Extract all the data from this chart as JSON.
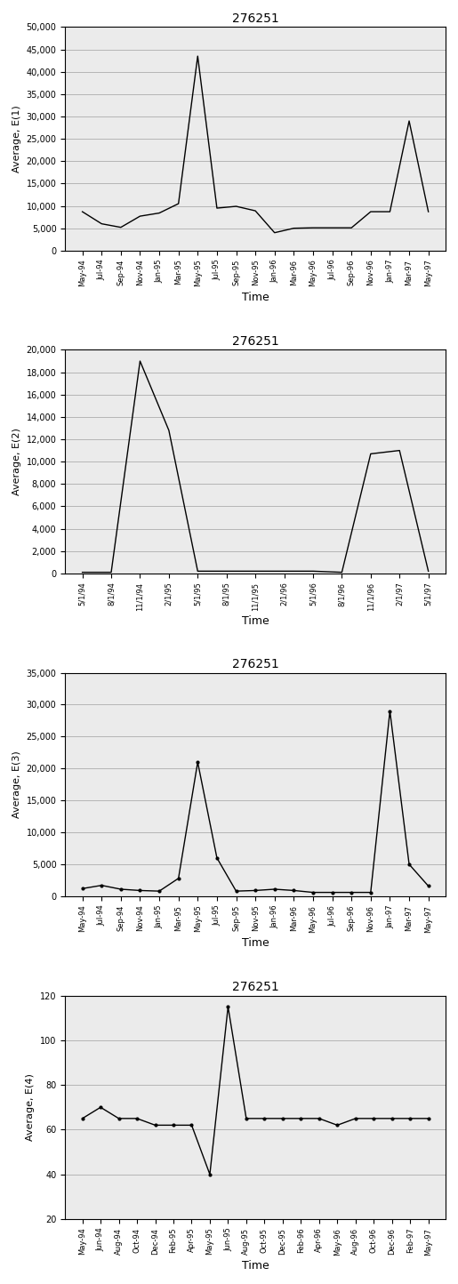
{
  "title": "276251",
  "xlabel": "Time",
  "charts": [
    {
      "ylabel": "Average, E(1)",
      "x_labels": [
        "May-94",
        "Jul-94",
        "Sep-94",
        "Nov-94",
        "Jan-95",
        "Mar-95",
        "May-95",
        "Jul-95",
        "Sep-95",
        "Nov-95",
        "Jan-96",
        "Mar-96",
        "May-96",
        "Jul-96",
        "Sep-96",
        "Nov-96",
        "Jan-97",
        "Mar-97",
        "May-97"
      ],
      "y_values": [
        8700,
        6000,
        5200,
        7700,
        8400,
        10500,
        43500,
        9500,
        9900,
        8900,
        4000,
        5000,
        5100,
        5100,
        5100,
        8700,
        8700,
        29000,
        8700
      ],
      "ylim": [
        0,
        50000
      ],
      "yticks": [
        0,
        5000,
        10000,
        15000,
        20000,
        25000,
        30000,
        35000,
        40000,
        45000,
        50000
      ]
    },
    {
      "ylabel": "Average, E(2)",
      "x_labels": [
        "5/1/94",
        "8/1/94",
        "11/1/94",
        "2/1/95",
        "5/1/95",
        "8/1/95",
        "11/1/95",
        "2/1/96",
        "5/1/96",
        "8/1/96",
        "11/1/96",
        "2/1/97",
        "5/1/97"
      ],
      "y_values": [
        100,
        100,
        19000,
        12800,
        200,
        200,
        200,
        200,
        200,
        100,
        10700,
        11000,
        200
      ],
      "ylim": [
        0,
        20000
      ],
      "yticks": [
        0,
        2000,
        4000,
        6000,
        8000,
        10000,
        12000,
        14000,
        16000,
        18000,
        20000
      ]
    },
    {
      "ylabel": "Average, E(3)",
      "x_labels": [
        "May-94",
        "Jul-94",
        "Sep-94",
        "Nov-94",
        "Jan-95",
        "Mar-95",
        "May-95",
        "Jul-95",
        "Sep-95",
        "Nov-95",
        "Jan-96",
        "Mar-96",
        "May-96",
        "Jul-96",
        "Sep-96",
        "Nov-96",
        "Jan-97",
        "Mar-97",
        "May-97"
      ],
      "y_values": [
        1200,
        1700,
        1100,
        900,
        800,
        2800,
        21000,
        6000,
        800,
        900,
        1100,
        900,
        600,
        600,
        600,
        600,
        29000,
        5000,
        1600
      ],
      "ylim": [
        0,
        35000
      ],
      "yticks": [
        0,
        5000,
        10000,
        15000,
        20000,
        25000,
        30000,
        35000
      ]
    },
    {
      "ylabel": "Average, E(4)",
      "x_labels": [
        "May-94",
        "Jun-94",
        "Aug-94",
        "Oct-94",
        "Dec-94",
        "Feb-95",
        "Apr-95",
        "May-95",
        "Jun-95",
        "Aug-95",
        "Oct-95",
        "Dec-95",
        "Feb-96",
        "Apr-96",
        "May-96",
        "Aug-96",
        "Oct-96",
        "Dec-96",
        "Feb-97",
        "May-97"
      ],
      "y_values": [
        65,
        70,
        65,
        65,
        62,
        62,
        62,
        40,
        115,
        65,
        65,
        65,
        65,
        65,
        62,
        65,
        65,
        65,
        65,
        65
      ],
      "ylim": [
        20,
        120
      ],
      "yticks": [
        20,
        40,
        60,
        80,
        100,
        120
      ]
    }
  ]
}
